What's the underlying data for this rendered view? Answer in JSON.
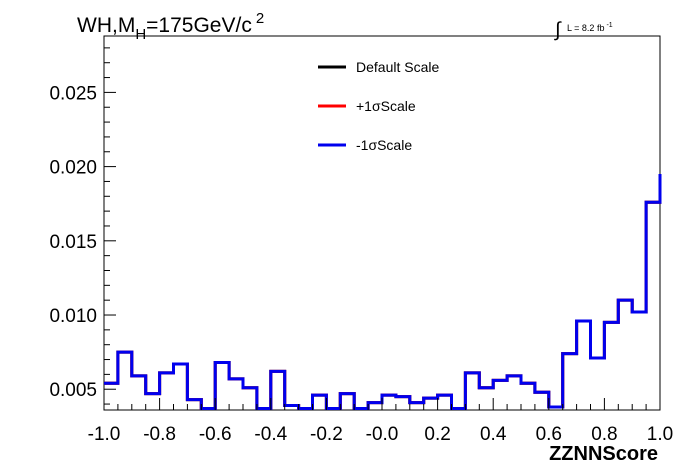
{
  "chart_data": {
    "type": "line",
    "style": "step-histogram",
    "title": {
      "main": "WH,M",
      "sub": "H",
      "rest": "=175GeV/c",
      "sup": "2"
    },
    "luminosity": {
      "integral": "∫",
      "label": "L = 8.2 fb",
      "sup": "-1"
    },
    "xlabel": "ZZNNScore",
    "ylabel": "",
    "xlim": [
      -1.0,
      1.0
    ],
    "ylim": [
      0.0036,
      0.0288
    ],
    "x_ticks": [
      "-1.0",
      "-0.8",
      "-0.6",
      "-0.4",
      "-0.2",
      "-0.0",
      "0.2",
      "0.4",
      "0.6",
      "0.8",
      "1.0"
    ],
    "y_ticks": [
      "0.005",
      "0.010",
      "0.015",
      "0.020",
      "0.025"
    ],
    "grid": false,
    "legend_position": "top-center",
    "bin_edges": [
      -1.0,
      -0.95,
      -0.9,
      -0.85,
      -0.8,
      -0.75,
      -0.7,
      -0.65,
      -0.6,
      -0.55,
      -0.5,
      -0.45,
      -0.4,
      -0.35,
      -0.3,
      -0.25,
      -0.2,
      -0.15,
      -0.1,
      -0.05,
      0.0,
      0.05,
      0.1,
      0.15,
      0.2,
      0.25,
      0.3,
      0.35,
      0.4,
      0.45,
      0.5,
      0.55,
      0.6,
      0.65,
      0.7,
      0.75,
      0.8,
      0.85,
      0.9,
      0.95,
      1.0
    ],
    "series": [
      {
        "name": "Default Scale",
        "color": "#000000",
        "values": [
          0.0054,
          0.0075,
          0.0059,
          0.0047,
          0.0061,
          0.0067,
          0.0043,
          0.0037,
          0.0068,
          0.0057,
          0.0051,
          0.0037,
          0.0062,
          0.0039,
          0.0037,
          0.0046,
          0.0037,
          0.0047,
          0.0037,
          0.0041,
          0.0046,
          0.0045,
          0.0041,
          0.0044,
          0.0046,
          0.0037,
          0.0061,
          0.0051,
          0.0056,
          0.0059,
          0.0054,
          0.0048,
          0.0038,
          0.0074,
          0.0096,
          0.0071,
          0.0095,
          0.011,
          0.0102,
          0.0176,
          0.0195
        ]
      },
      {
        "name": "+1σScale",
        "color": "#ff0000",
        "values": [
          0.0054,
          0.0075,
          0.0059,
          0.0047,
          0.0061,
          0.0067,
          0.0043,
          0.0037,
          0.0068,
          0.0057,
          0.0051,
          0.0037,
          0.0062,
          0.0039,
          0.0037,
          0.0046,
          0.0037,
          0.0047,
          0.0037,
          0.0041,
          0.0046,
          0.0045,
          0.0041,
          0.0044,
          0.0046,
          0.0037,
          0.0061,
          0.0051,
          0.0056,
          0.0059,
          0.0054,
          0.0048,
          0.0038,
          0.0074,
          0.0096,
          0.0071,
          0.0095,
          0.011,
          0.0102,
          0.0176,
          0.0195
        ]
      },
      {
        "name": "-1σScale",
        "color": "#0000ee",
        "values": [
          0.0054,
          0.0075,
          0.0059,
          0.0047,
          0.0061,
          0.0067,
          0.0043,
          0.0037,
          0.0068,
          0.0057,
          0.0051,
          0.0037,
          0.0062,
          0.0039,
          0.0037,
          0.0046,
          0.0037,
          0.0047,
          0.0037,
          0.0041,
          0.0046,
          0.0045,
          0.0041,
          0.0044,
          0.0046,
          0.0037,
          0.0061,
          0.0051,
          0.0056,
          0.0059,
          0.0054,
          0.0048,
          0.0038,
          0.0074,
          0.0096,
          0.0071,
          0.0095,
          0.011,
          0.0102,
          0.0176,
          0.0195
        ]
      }
    ]
  }
}
